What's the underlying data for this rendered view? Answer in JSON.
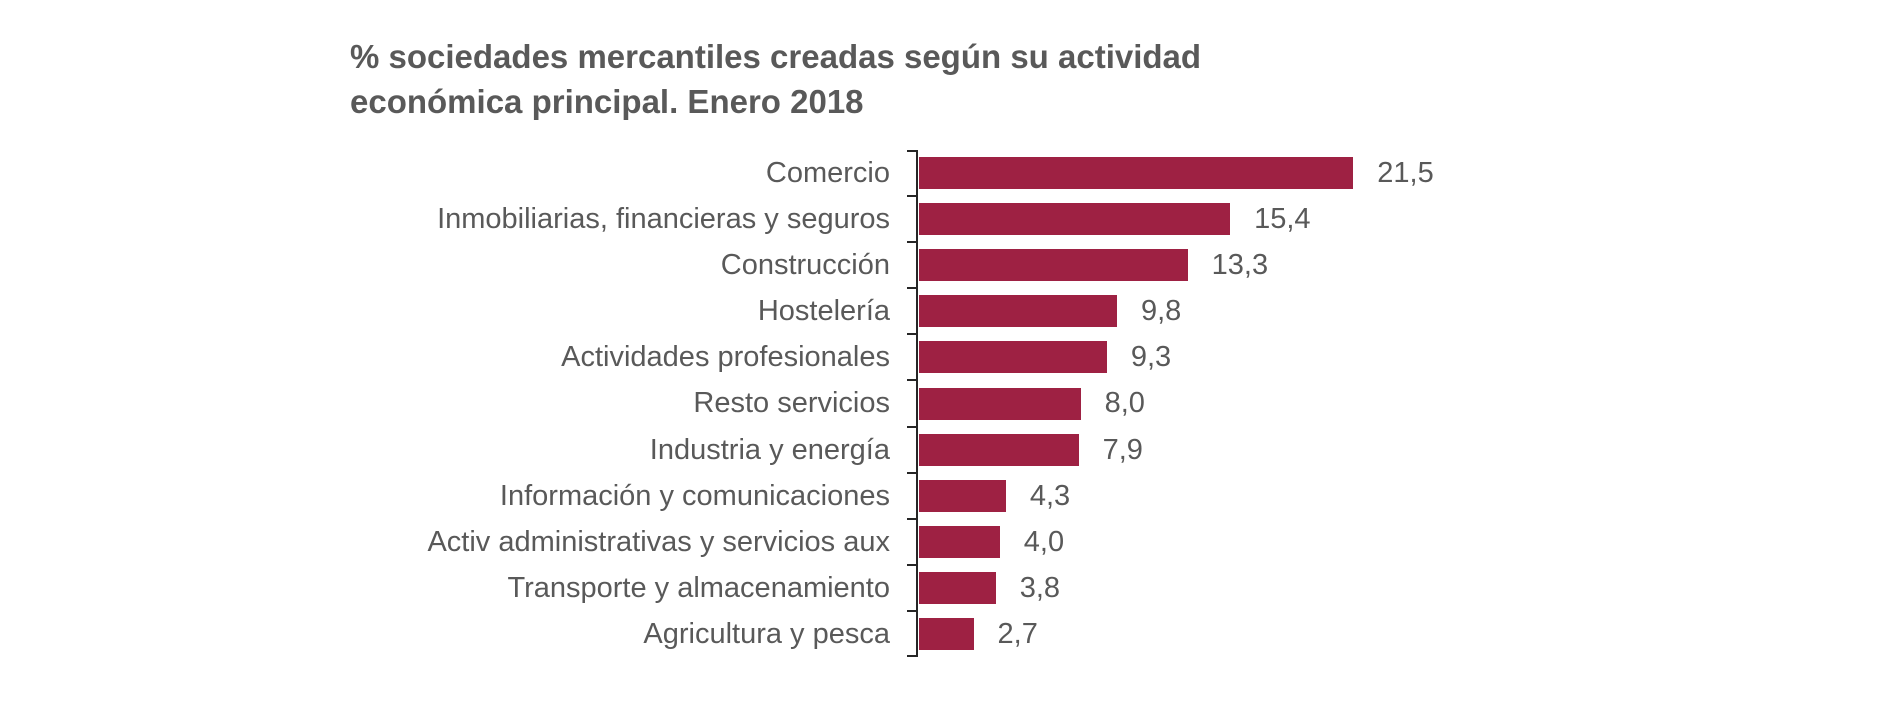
{
  "title_lines": [
    "% sociedades mercantiles creadas según su actividad",
    "económica principal. Enero 2018"
  ],
  "chart_data": {
    "type": "bar",
    "orientation": "horizontal",
    "title": "% sociedades mercantiles creadas según su actividad económica principal. Enero 2018",
    "categories": [
      "Comercio",
      "Inmobiliarias, financieras y seguros",
      "Construcción",
      "Hostelería",
      "Actividades profesionales",
      "Resto servicios",
      "Industria y energía",
      "Información y comunicaciones",
      "Activ administrativas y servicios aux",
      "Transporte y almacenamiento",
      "Agricultura y pesca"
    ],
    "values": [
      21.5,
      15.4,
      13.3,
      9.8,
      9.3,
      8.0,
      7.9,
      4.3,
      4.0,
      3.8,
      2.7
    ],
    "value_labels": [
      "21,5",
      "15,4",
      "13,3",
      "9,8",
      "9,3",
      "8,0",
      "7,9",
      "4,3",
      "4,0",
      "3,8",
      "2,7"
    ],
    "xlabel": "",
    "ylabel": "",
    "xlim": [
      0,
      25
    ],
    "grid": false,
    "legend": "none",
    "bar_color": "#9e2143",
    "text_color": "#595959",
    "axis_color": "#262626",
    "background_color": "#ffffff"
  }
}
